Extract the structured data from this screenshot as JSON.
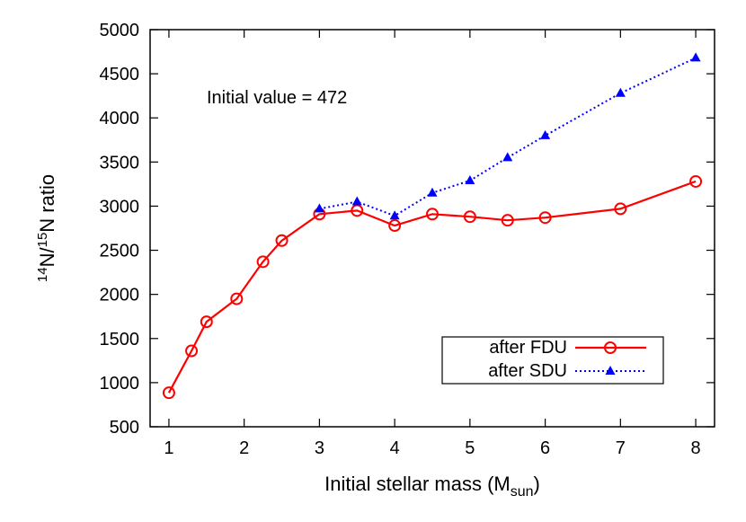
{
  "chart_data": {
    "type": "line",
    "xlabel_main": "Initial stellar mass (M",
    "xlabel_sub": "sun",
    "xlabel_close": ")",
    "ylabel_sup1": "14",
    "ylabel_mid": "N/",
    "ylabel_sup2": "15",
    "ylabel_end": "N ratio",
    "xlim": [
      0.75,
      8.25
    ],
    "ylim": [
      500,
      5000
    ],
    "xticks": [
      1,
      2,
      3,
      4,
      5,
      6,
      7,
      8
    ],
    "yticks": [
      500,
      1000,
      1500,
      2000,
      2500,
      3000,
      3500,
      4000,
      4500,
      5000
    ],
    "annotation": "Initial value = 472",
    "legend_position": "lower-right",
    "grid": false,
    "series": [
      {
        "name": "after FDU",
        "color": "#ff0000",
        "marker": "circle",
        "line_style": "solid",
        "x": [
          1,
          1.3,
          1.5,
          1.9,
          2.25,
          2.5,
          3,
          3.5,
          4,
          4.5,
          5,
          5.5,
          6,
          7,
          8
        ],
        "y": [
          885,
          1360,
          1690,
          1950,
          2370,
          2610,
          2910,
          2950,
          2780,
          2910,
          2880,
          2840,
          2870,
          2970,
          3280
        ]
      },
      {
        "name": "after SDU",
        "color": "#0000ff",
        "marker": "triangle",
        "line_style": "dotted",
        "x": [
          3,
          3.5,
          4,
          4.5,
          5,
          5.5,
          6,
          7,
          8
        ],
        "y": [
          2970,
          3050,
          2890,
          3150,
          3290,
          3550,
          3800,
          4280,
          4680
        ]
      }
    ]
  }
}
